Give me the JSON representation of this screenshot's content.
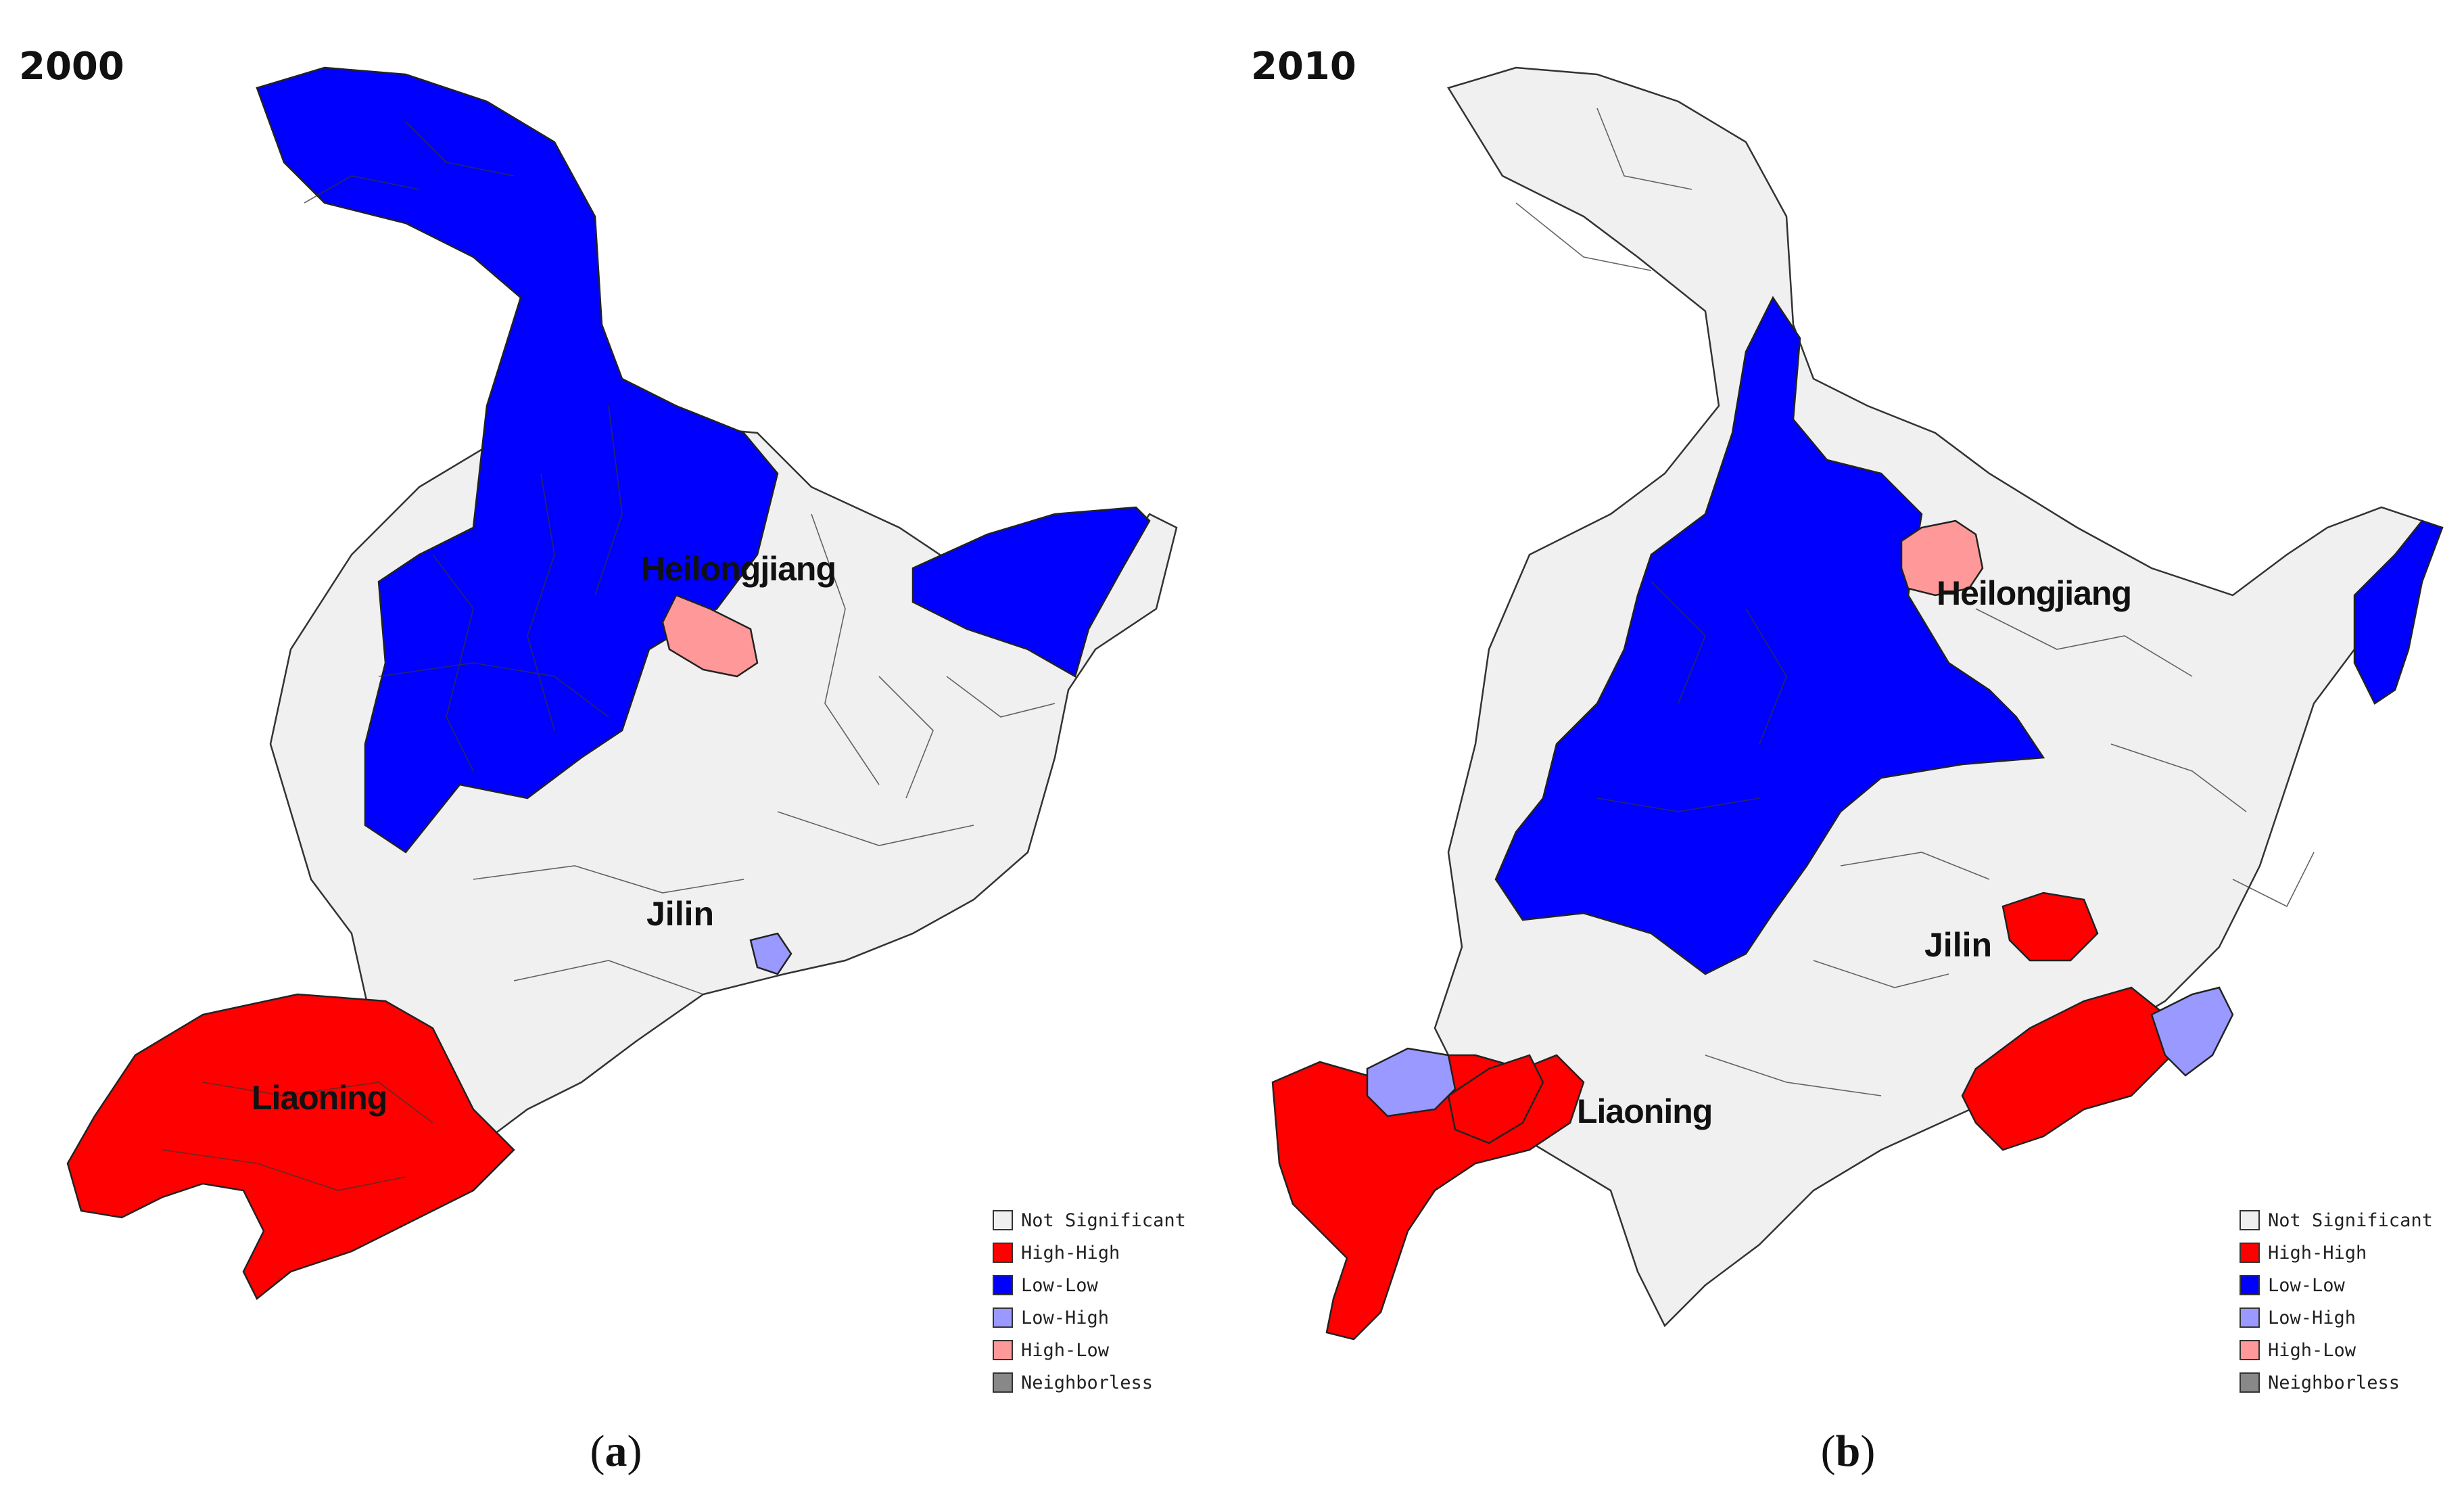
{
  "categories": {
    "not_significant": {
      "label": "Not Significant",
      "color": "#f0f0f0"
    },
    "high_high": {
      "label": "High-High",
      "color": "#ff0000"
    },
    "low_low": {
      "label": "Low-Low",
      "color": "#0000ff"
    },
    "low_high": {
      "label": "Low-High",
      "color": "#9999ff"
    },
    "high_low": {
      "label": "High-Low",
      "color": "#ff9999"
    },
    "neighborless": {
      "label": "Neighborless",
      "color": "#888888"
    }
  },
  "province_labels": [
    "Heilongjiang",
    "Jilin",
    "Liaoning"
  ],
  "panels": [
    {
      "id": "a",
      "year": "2000",
      "caption_letter": "a",
      "clusters": {
        "Heilongjiang": [
          "low_low",
          "high_low"
        ],
        "Jilin": [
          "not_significant",
          "low_high"
        ],
        "Liaoning": [
          "high_high"
        ]
      }
    },
    {
      "id": "b",
      "year": "2010",
      "caption_letter": "b",
      "clusters": {
        "Heilongjiang": [
          "low_low",
          "high_low",
          "not_significant"
        ],
        "Jilin": [
          "not_significant",
          "high_high",
          "low_high",
          "low_low"
        ],
        "Liaoning": [
          "high_high",
          "low_high",
          "not_significant"
        ]
      }
    }
  ]
}
